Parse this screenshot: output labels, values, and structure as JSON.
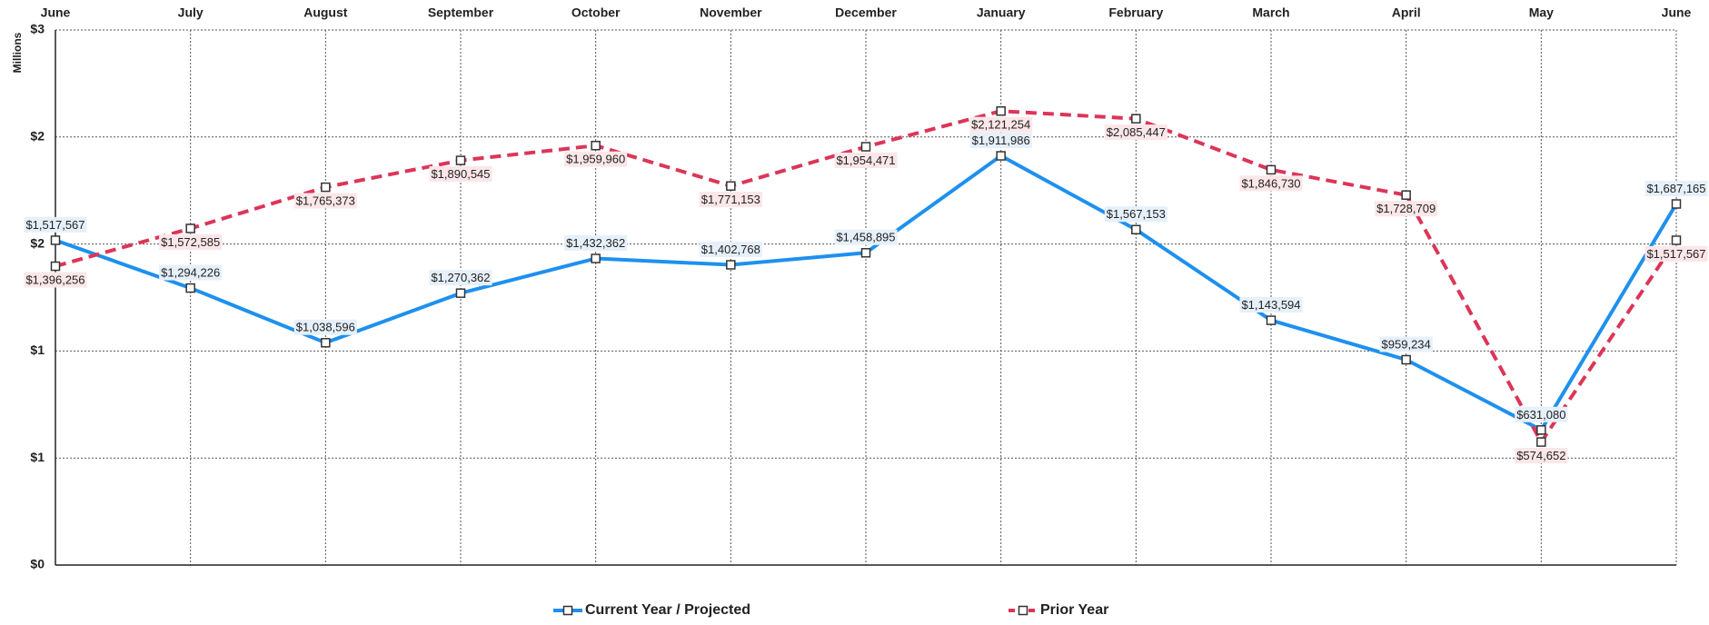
{
  "chart_data": {
    "type": "line",
    "y_label": "Millions",
    "categories": [
      "June",
      "July",
      "August",
      "September",
      "October",
      "November",
      "December",
      "January",
      "February",
      "March",
      "April",
      "May",
      "June"
    ],
    "ylim": [
      0,
      2.5
    ],
    "yticks": [
      {
        "value": 0,
        "label": "$0"
      },
      {
        "value": 0.5,
        "label": "$1"
      },
      {
        "value": 1,
        "label": "$1"
      },
      {
        "value": 1.5,
        "label": "$2"
      },
      {
        "value": 2,
        "label": "$2"
      },
      {
        "value": 2.5,
        "label": "$3"
      }
    ],
    "grid": true,
    "legend": "bottom",
    "series": [
      {
        "name": "Current Year / Projected",
        "color": "#1e90ef",
        "dashed": false,
        "label_position": "above",
        "values": [
          1.517567,
          1.294226,
          1.038596,
          1.270362,
          1.432362,
          1.402768,
          1.458895,
          1.911986,
          1.567153,
          1.143594,
          0.959234,
          0.63108,
          1.687165
        ],
        "value_labels": [
          "$1,517,567",
          "$1,294,226",
          "$1,038,596",
          "$1,270,362",
          "$1,432,362",
          "$1,402,768",
          "$1,458,895",
          "$1,911,986",
          "$1,567,153",
          "$1,143,594",
          "$959,234",
          "$631,080",
          "$1,687,165"
        ]
      },
      {
        "name": "Prior Year",
        "color": "#dc3558",
        "dashed": true,
        "label_position": "below",
        "values": [
          1.396256,
          1.572585,
          1.765373,
          1.890545,
          1.95996,
          1.771153,
          1.954471,
          2.121254,
          2.085447,
          1.84673,
          1.728709,
          0.574652,
          1.517567
        ],
        "value_labels": [
          "$1,396,256",
          "$1,572,585",
          "$1,765,373",
          "$1,890,545",
          "$1,959,960",
          "$1,771,153",
          "$1,954,471",
          "$2,121,254",
          "$2,085,447",
          "$1,846,730",
          "$1,728,709",
          "$574,652",
          "$1,517,567"
        ]
      }
    ]
  }
}
